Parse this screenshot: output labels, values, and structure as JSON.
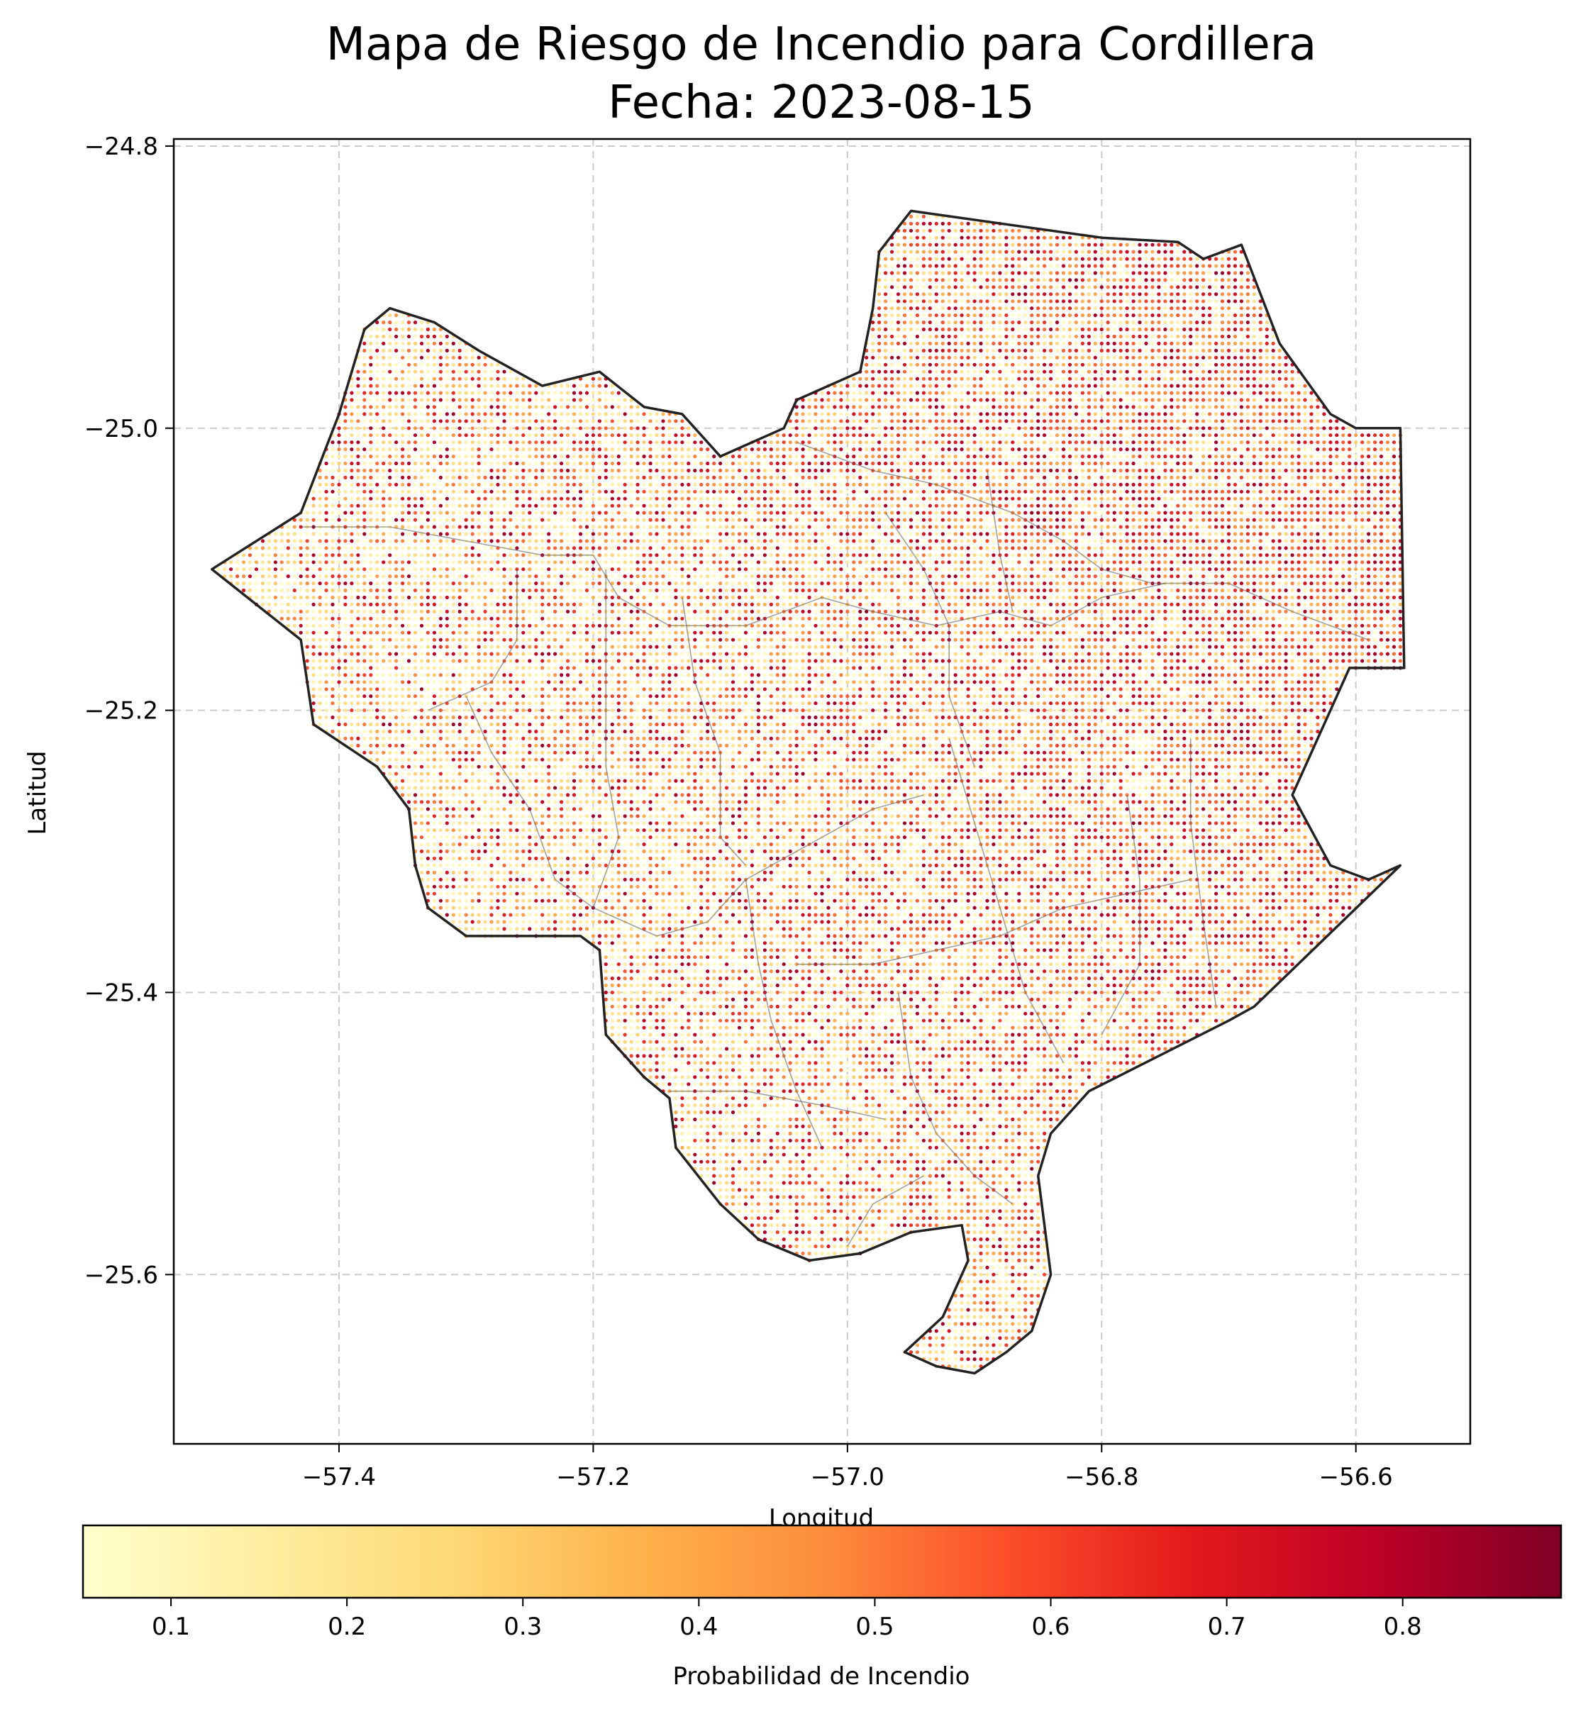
{
  "chart_data": {
    "type": "scatter",
    "title": [
      "Mapa de Riesgo de Incendio para Cordillera",
      "Fecha: 2023-08-15"
    ],
    "xlabel": "Longitud",
    "ylabel": "Latitud",
    "xlim": [
      -57.53,
      -56.51
    ],
    "ylim": [
      -25.72,
      -24.795
    ],
    "xticks": [
      -57.4,
      -57.2,
      -57.0,
      -56.8,
      -56.6
    ],
    "xtick_labels": [
      "−57.4",
      "−57.2",
      "−57.0",
      "−56.8",
      "−56.6"
    ],
    "yticks": [
      -24.8,
      -25.0,
      -25.2,
      -25.4,
      -25.6
    ],
    "ytick_labels": [
      "−24.8",
      "−25.0",
      "−25.2",
      "−25.4",
      "−25.6"
    ],
    "grid": true,
    "colormap": "YlOrRd",
    "colorbar": {
      "label": "Probabilidad de Incendio",
      "range": [
        0.05,
        0.89
      ],
      "orientation": "horizontal",
      "ticks": [
        0.1,
        0.2,
        0.3,
        0.4,
        0.5,
        0.6,
        0.7,
        0.8
      ],
      "tick_labels": [
        "0.1",
        "0.2",
        "0.3",
        "0.4",
        "0.5",
        "0.6",
        "0.7",
        "0.8"
      ],
      "colors": [
        "#ffffcc",
        "#ffeda0",
        "#fed976",
        "#feb24c",
        "#fd8d3c",
        "#fc4e2a",
        "#e31a1c",
        "#bd0026",
        "#800026"
      ]
    },
    "boundary": [
      [
        -56.95,
        -24.846
      ],
      [
        -56.8,
        -24.865
      ],
      [
        -56.74,
        -24.868
      ],
      [
        -56.72,
        -24.88
      ],
      [
        -56.69,
        -24.87
      ],
      [
        -56.66,
        -24.94
      ],
      [
        -56.62,
        -24.99
      ],
      [
        -56.6,
        -25.0
      ],
      [
        -56.565,
        -25.0
      ],
      [
        -56.562,
        -25.17
      ],
      [
        -56.605,
        -25.17
      ],
      [
        -56.65,
        -25.26
      ],
      [
        -56.62,
        -25.31
      ],
      [
        -56.59,
        -25.32
      ],
      [
        -56.565,
        -25.31
      ],
      [
        -56.68,
        -25.41
      ],
      [
        -56.7,
        -25.42
      ],
      [
        -56.81,
        -25.47
      ],
      [
        -56.84,
        -25.5
      ],
      [
        -56.85,
        -25.53
      ],
      [
        -56.84,
        -25.6
      ],
      [
        -56.855,
        -25.64
      ],
      [
        -56.875,
        -25.655
      ],
      [
        -56.9,
        -25.67
      ],
      [
        -56.93,
        -25.665
      ],
      [
        -56.955,
        -25.655
      ],
      [
        -56.925,
        -25.63
      ],
      [
        -56.905,
        -25.59
      ],
      [
        -56.91,
        -25.565
      ],
      [
        -56.95,
        -25.57
      ],
      [
        -56.99,
        -25.585
      ],
      [
        -57.03,
        -25.59
      ],
      [
        -57.07,
        -25.575
      ],
      [
        -57.1,
        -25.55
      ],
      [
        -57.135,
        -25.51
      ],
      [
        -57.14,
        -25.475
      ],
      [
        -57.16,
        -25.46
      ],
      [
        -57.19,
        -25.43
      ],
      [
        -57.195,
        -25.37
      ],
      [
        -57.21,
        -25.36
      ],
      [
        -57.26,
        -25.36
      ],
      [
        -57.3,
        -25.36
      ],
      [
        -57.33,
        -25.34
      ],
      [
        -57.34,
        -25.31
      ],
      [
        -57.345,
        -25.27
      ],
      [
        -57.37,
        -25.24
      ],
      [
        -57.42,
        -25.21
      ],
      [
        -57.43,
        -25.15
      ],
      [
        -57.5,
        -25.1
      ],
      [
        -57.43,
        -25.06
      ],
      [
        -57.4,
        -24.99
      ],
      [
        -57.38,
        -24.93
      ],
      [
        -57.36,
        -24.915
      ],
      [
        -57.325,
        -24.925
      ],
      [
        -57.29,
        -24.945
      ],
      [
        -57.24,
        -24.97
      ],
      [
        -57.195,
        -24.96
      ],
      [
        -57.16,
        -24.985
      ],
      [
        -57.13,
        -24.99
      ],
      [
        -57.1,
        -25.02
      ],
      [
        -57.05,
        -25.0
      ],
      [
        -57.04,
        -24.98
      ],
      [
        -56.99,
        -24.96
      ],
      [
        -56.98,
        -24.915
      ],
      [
        -56.975,
        -24.875
      ]
    ],
    "districts": [
      [
        [
          -57.43,
          -25.07
        ],
        [
          -57.36,
          -25.07
        ],
        [
          -57.3,
          -25.08
        ],
        [
          -57.24,
          -25.09
        ],
        [
          -57.2,
          -25.09
        ]
      ],
      [
        [
          -57.2,
          -25.09
        ],
        [
          -57.18,
          -25.12
        ],
        [
          -57.14,
          -25.14
        ],
        [
          -57.08,
          -25.14
        ],
        [
          -57.02,
          -25.12
        ],
        [
          -56.98,
          -25.13
        ],
        [
          -56.93,
          -25.14
        ],
        [
          -56.88,
          -25.13
        ],
        [
          -56.84,
          -25.14
        ],
        [
          -56.8,
          -25.12
        ],
        [
          -56.75,
          -25.11
        ]
      ],
      [
        [
          -57.04,
          -25.01
        ],
        [
          -56.98,
          -25.03
        ],
        [
          -56.93,
          -25.04
        ],
        [
          -56.87,
          -25.06
        ],
        [
          -56.83,
          -25.08
        ],
        [
          -56.8,
          -25.1
        ],
        [
          -56.76,
          -25.11
        ],
        [
          -56.7,
          -25.11
        ],
        [
          -56.65,
          -25.13
        ],
        [
          -56.59,
          -25.15
        ]
      ],
      [
        [
          -56.97,
          -25.06
        ],
        [
          -56.94,
          -25.1
        ],
        [
          -56.92,
          -25.14
        ],
        [
          -56.92,
          -25.19
        ],
        [
          -56.9,
          -25.24
        ]
      ],
      [
        [
          -56.89,
          -25.03
        ],
        [
          -56.88,
          -25.09
        ],
        [
          -56.87,
          -25.13
        ]
      ],
      [
        [
          -57.13,
          -25.12
        ],
        [
          -57.12,
          -25.18
        ],
        [
          -57.1,
          -25.23
        ],
        [
          -57.1,
          -25.29
        ],
        [
          -57.08,
          -25.31
        ]
      ],
      [
        [
          -57.19,
          -25.1
        ],
        [
          -57.19,
          -25.17
        ],
        [
          -57.19,
          -25.24
        ],
        [
          -57.18,
          -25.29
        ],
        [
          -57.2,
          -25.34
        ]
      ],
      [
        [
          -57.26,
          -25.1
        ],
        [
          -57.26,
          -25.15
        ],
        [
          -57.28,
          -25.18
        ],
        [
          -57.33,
          -25.2
        ]
      ],
      [
        [
          -57.3,
          -25.19
        ],
        [
          -57.28,
          -25.23
        ],
        [
          -57.25,
          -25.27
        ],
        [
          -57.23,
          -25.32
        ],
        [
          -57.2,
          -25.34
        ],
        [
          -57.15,
          -25.36
        ],
        [
          -57.11,
          -25.35
        ],
        [
          -57.08,
          -25.32
        ],
        [
          -57.04,
          -25.3
        ],
        [
          -56.98,
          -25.27
        ],
        [
          -56.94,
          -25.26
        ]
      ],
      [
        [
          -57.08,
          -25.32
        ],
        [
          -57.07,
          -25.38
        ],
        [
          -57.06,
          -25.42
        ],
        [
          -57.04,
          -25.47
        ],
        [
          -57.02,
          -25.51
        ]
      ],
      [
        [
          -57.04,
          -25.38
        ],
        [
          -56.98,
          -25.38
        ],
        [
          -56.93,
          -25.37
        ],
        [
          -56.88,
          -25.36
        ],
        [
          -56.83,
          -25.34
        ],
        [
          -56.78,
          -25.33
        ],
        [
          -56.73,
          -25.32
        ]
      ],
      [
        [
          -56.92,
          -25.22
        ],
        [
          -56.9,
          -25.28
        ],
        [
          -56.88,
          -25.34
        ],
        [
          -56.86,
          -25.4
        ],
        [
          -56.83,
          -25.45
        ]
      ],
      [
        [
          -56.73,
          -25.22
        ],
        [
          -56.73,
          -25.28
        ],
        [
          -56.72,
          -25.35
        ],
        [
          -56.71,
          -25.41
        ]
      ],
      [
        [
          -56.78,
          -25.26
        ],
        [
          -56.77,
          -25.32
        ],
        [
          -56.77,
          -25.38
        ],
        [
          -56.8,
          -25.43
        ]
      ],
      [
        [
          -56.96,
          -25.4
        ],
        [
          -56.95,
          -25.46
        ],
        [
          -56.93,
          -25.5
        ],
        [
          -56.9,
          -25.53
        ],
        [
          -56.87,
          -25.55
        ]
      ],
      [
        [
          -57.14,
          -25.47
        ],
        [
          -57.08,
          -25.47
        ],
        [
          -57.02,
          -25.48
        ],
        [
          -56.97,
          -25.49
        ]
      ],
      [
        [
          -56.94,
          -25.53
        ],
        [
          -56.98,
          -25.55
        ],
        [
          -57.0,
          -25.58
        ]
      ]
    ],
    "risk_field": "pseudo-random per-point fire probability over a regular 0.005° grid clipped to the department boundary; low values (0.05–0.2) dominate the southwest lowlands, high values (0.5–0.85) dominate the northeast"
  }
}
